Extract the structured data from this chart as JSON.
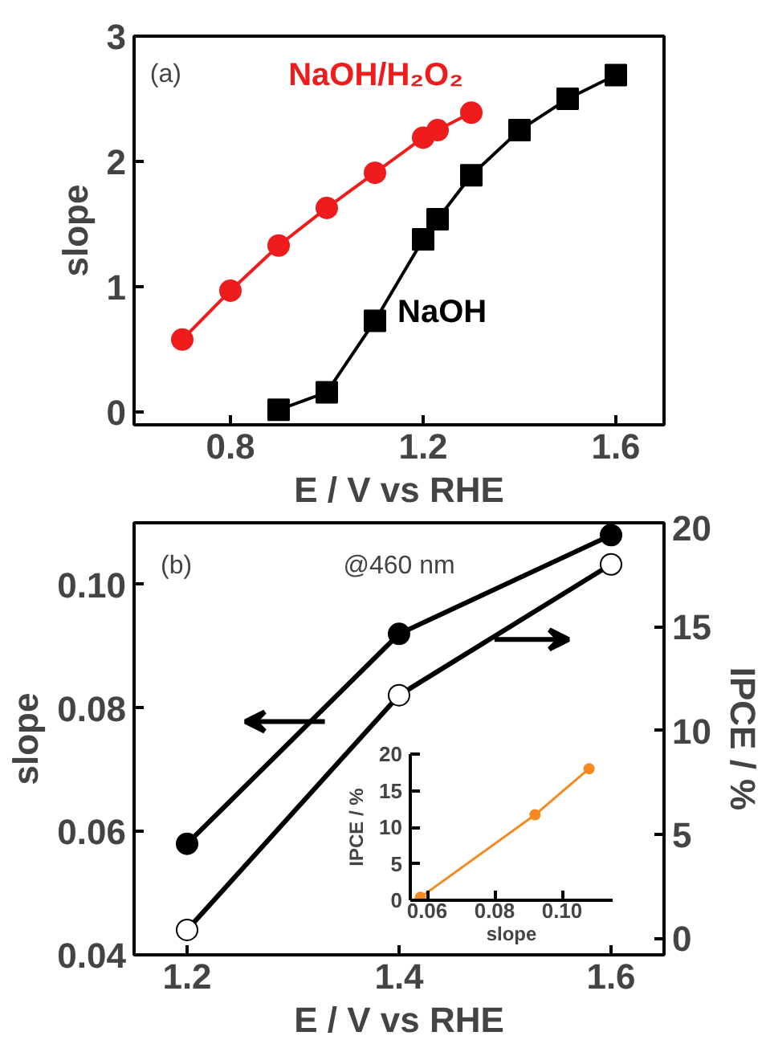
{
  "chart_data": [
    {
      "type": "line",
      "xlabel": "E / V vs RHE",
      "ylabel": "slope",
      "xlim": [
        0.6,
        1.7
      ],
      "ylim": [
        -0.1,
        3
      ],
      "xticks": [
        0.8,
        1.2,
        1.6
      ],
      "yticks": [
        0,
        1,
        2,
        3
      ],
      "annotations": [
        "(a)"
      ],
      "grid": false,
      "series": [
        {
          "name": "NaOH/H₂O₂",
          "color": "#ee1c1c",
          "marker": "circle",
          "x": [
            0.7,
            0.8,
            0.9,
            1.0,
            1.1,
            1.2,
            1.23,
            1.3
          ],
          "values": [
            0.58,
            0.97,
            1.33,
            1.63,
            1.91,
            2.19,
            2.25,
            2.39
          ]
        },
        {
          "name": "NaOH",
          "color": "#000000",
          "marker": "square",
          "x": [
            0.9,
            1.0,
            1.1,
            1.2,
            1.23,
            1.3,
            1.4,
            1.5,
            1.6
          ],
          "values": [
            0.02,
            0.16,
            0.73,
            1.38,
            1.54,
            1.89,
            2.25,
            2.5,
            2.69
          ]
        }
      ]
    },
    {
      "type": "line",
      "xlabel": "E / V vs RHE",
      "ylabel": "slope",
      "y2label": "IPCE / %",
      "xlim": [
        1.15,
        1.65
      ],
      "ylim": [
        0.04,
        0.11
      ],
      "y2lim": [
        -0.8,
        20
      ],
      "xticks": [
        1.2,
        1.4,
        1.6
      ],
      "yticks": [
        0.04,
        0.06,
        0.08,
        {
          "value": 0.1,
          "label": "0.10"
        }
      ],
      "y2ticks": [
        0,
        5,
        10,
        15,
        20
      ],
      "annotations": [
        "(b)",
        "@460 nm"
      ],
      "grid": false,
      "x": [
        1.2,
        1.4,
        1.6
      ],
      "series": [
        {
          "color": "#000000",
          "marker": "circle",
          "values": [
            0.058,
            0.092,
            0.108
          ]
        },
        {
          "color": "#000000",
          "marker": "circle",
          "axis": "y2",
          "values": [
            0.4,
            11.7,
            18.0
          ]
        }
      ]
    },
    {
      "type": "line",
      "xlabel": "slope",
      "ylabel": "IPCE / %",
      "xlim": [
        0.055,
        0.115
      ],
      "ylim": [
        0,
        20
      ],
      "xticks": [
        0.06,
        0.08,
        {
          "value": 0.1,
          "label": "0.10"
        }
      ],
      "yticks": [
        0,
        5,
        10,
        15,
        20
      ],
      "grid": false,
      "x": [
        0.058,
        0.092,
        0.108
      ],
      "series": [
        {
          "color": "#f5891f",
          "marker": "circle",
          "values": [
            0.4,
            11.7,
            18.0
          ]
        }
      ]
    }
  ]
}
